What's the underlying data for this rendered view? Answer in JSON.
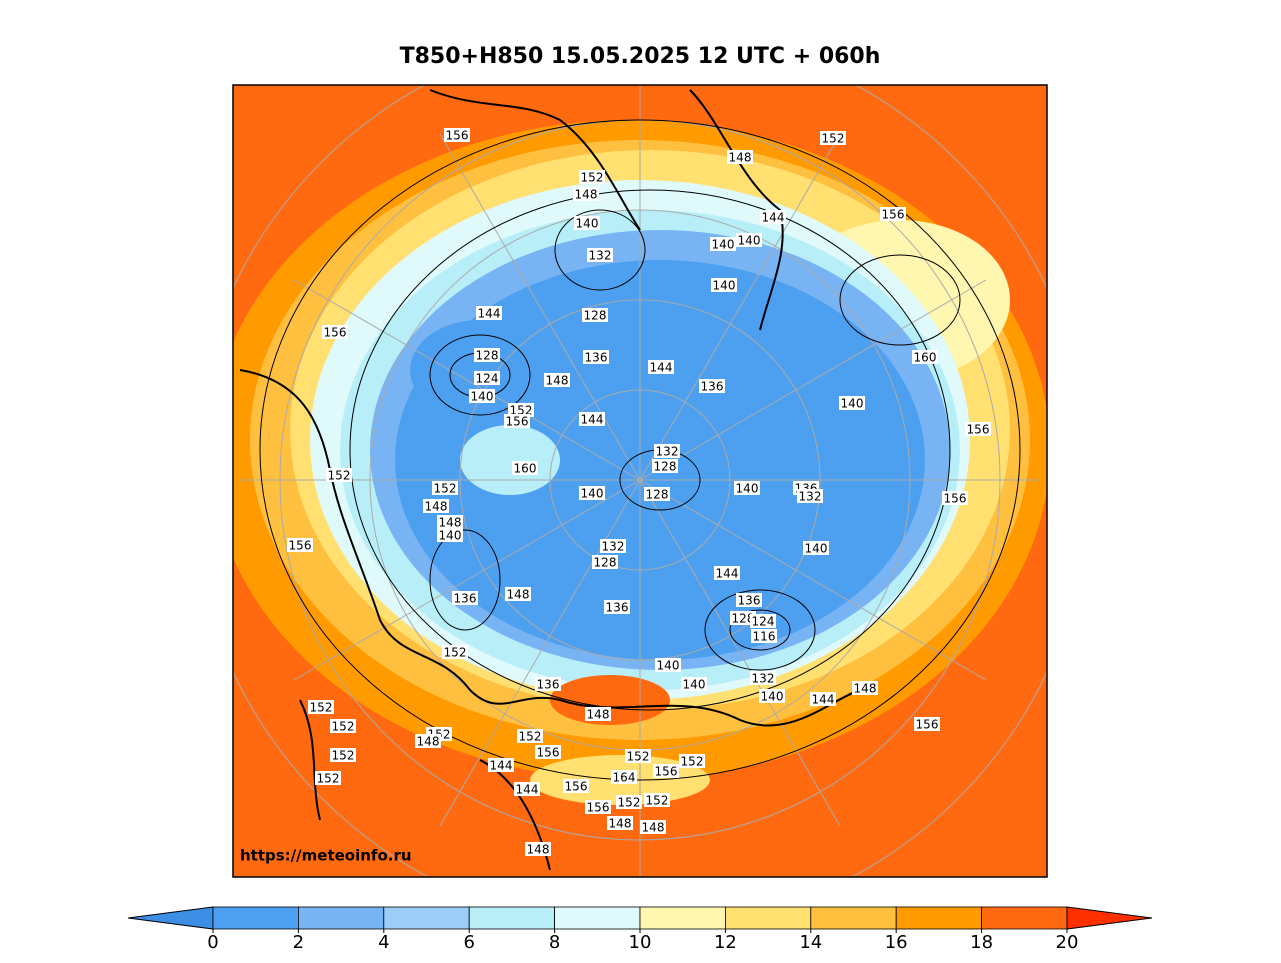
{
  "title": "T850+H850 15.05.2025 12 UTC + 060h",
  "watermark": "https://meteoinfo.ru",
  "colorbar": {
    "ticks": [
      0,
      2,
      4,
      6,
      8,
      10,
      12,
      14,
      16,
      18,
      20
    ],
    "colors": [
      "#3d8fe6",
      "#4da0f0",
      "#78b4f4",
      "#9ccdf8",
      "#b8eef8",
      "#e0fafc",
      "#fff6b0",
      "#ffe070",
      "#ffc040",
      "#ff9a00",
      "#ff6a10",
      "#ff3000"
    ]
  },
  "contour_labels": [
    156,
    152,
    148,
    152,
    148,
    140,
    144,
    140,
    140,
    132,
    156,
    140,
    128,
    144,
    156,
    160,
    128,
    136,
    124,
    148,
    144,
    136,
    140,
    152,
    156,
    144,
    140,
    156,
    132,
    128,
    160,
    152,
    152,
    140,
    128,
    140,
    136,
    132,
    156,
    148,
    148,
    140,
    156,
    132,
    140,
    128,
    144,
    136,
    148,
    136,
    136,
    128,
    124,
    116,
    152,
    140,
    140,
    136,
    132,
    140,
    144,
    148,
    152,
    148,
    156,
    152,
    152,
    148,
    152,
    152,
    144,
    156,
    152,
    156,
    152,
    164,
    156,
    144,
    152,
    156,
    152,
    152,
    148,
    148,
    148
  ]
}
